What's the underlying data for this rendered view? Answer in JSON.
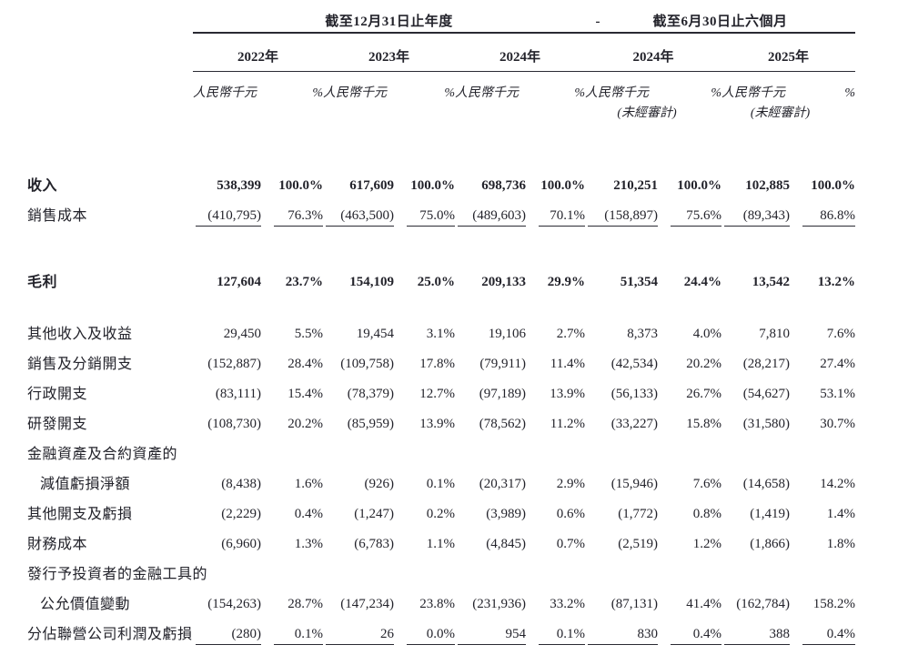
{
  "table": {
    "sections": [
      {
        "title": "截至12月31日止年度"
      },
      {
        "title": "截至6月30日止六個月"
      }
    ],
    "separator": "-",
    "unit_label": "人民幣千元",
    "pct_label": "%",
    "unaudited_label": "(未經審計)",
    "years": [
      {
        "label": "2022年",
        "unaudited": false
      },
      {
        "label": "2023年",
        "unaudited": false
      },
      {
        "label": "2024年",
        "unaudited": false
      },
      {
        "label": "2024年",
        "unaudited": true
      },
      {
        "label": "2025年",
        "unaudited": true
      }
    ],
    "rows": [
      {
        "label": "收入",
        "bold": true,
        "values": [
          "538,399",
          "100.0%",
          "617,609",
          "100.0%",
          "698,736",
          "100.0%",
          "210,251",
          "100.0%",
          "102,885",
          "100.0%"
        ]
      },
      {
        "label": "銷售成本",
        "underline": true,
        "values": [
          "(410,795)",
          "76.3%",
          "(463,500)",
          "75.0%",
          "(489,603)",
          "70.1%",
          "(158,897)",
          "75.6%",
          "(89,343)",
          "86.8%"
        ]
      },
      {
        "spacer": 40
      },
      {
        "label": "毛利",
        "bold": true,
        "values": [
          "127,604",
          "23.7%",
          "154,109",
          "25.0%",
          "209,133",
          "29.9%",
          "51,354",
          "24.4%",
          "13,542",
          "13.2%"
        ]
      },
      {
        "spacer": 24
      },
      {
        "label": "其他收入及收益",
        "values": [
          "29,450",
          "5.5%",
          "19,454",
          "3.1%",
          "19,106",
          "2.7%",
          "8,373",
          "4.0%",
          "7,810",
          "7.6%"
        ]
      },
      {
        "label": "銷售及分銷開支",
        "values": [
          "(152,887)",
          "28.4%",
          "(109,758)",
          "17.8%",
          "(79,911)",
          "11.4%",
          "(42,534)",
          "20.2%",
          "(28,217)",
          "27.4%"
        ]
      },
      {
        "label": "行政開支",
        "values": [
          "(83,111)",
          "15.4%",
          "(78,379)",
          "12.7%",
          "(97,189)",
          "13.9%",
          "(56,133)",
          "26.7%",
          "(54,627)",
          "53.1%"
        ]
      },
      {
        "label": "研發開支",
        "values": [
          "(108,730)",
          "20.2%",
          "(85,959)",
          "13.9%",
          "(78,562)",
          "11.2%",
          "(33,227)",
          "15.8%",
          "(31,580)",
          "30.7%"
        ]
      },
      {
        "label": "金融資產及合約資產的",
        "values": [
          "",
          "",
          "",
          "",
          "",
          "",
          "",
          "",
          "",
          ""
        ]
      },
      {
        "label": "減值虧損淨額",
        "indent": true,
        "values": [
          "(8,438)",
          "1.6%",
          "(926)",
          "0.1%",
          "(20,317)",
          "2.9%",
          "(15,946)",
          "7.6%",
          "(14,658)",
          "14.2%"
        ]
      },
      {
        "label": "其他開支及虧損",
        "values": [
          "(2,229)",
          "0.4%",
          "(1,247)",
          "0.2%",
          "(3,989)",
          "0.6%",
          "(1,772)",
          "0.8%",
          "(1,419)",
          "1.4%"
        ]
      },
      {
        "label": "財務成本",
        "values": [
          "(6,960)",
          "1.3%",
          "(6,783)",
          "1.1%",
          "(4,845)",
          "0.7%",
          "(2,519)",
          "1.2%",
          "(1,866)",
          "1.8%"
        ]
      },
      {
        "label": "發行予投資者的金融工具的",
        "values": [
          "",
          "",
          "",
          "",
          "",
          "",
          "",
          "",
          "",
          ""
        ]
      },
      {
        "label": "公允價值變動",
        "indent": true,
        "values": [
          "(154,263)",
          "28.7%",
          "(147,234)",
          "23.8%",
          "(231,936)",
          "33.2%",
          "(87,131)",
          "41.4%",
          "(162,784)",
          "158.2%"
        ]
      },
      {
        "label": "分佔聯營公司利潤及虧損",
        "underline": true,
        "values": [
          "(280)",
          "0.1%",
          "26",
          "0.0%",
          "954",
          "0.1%",
          "830",
          "0.4%",
          "388",
          "0.4%"
        ]
      }
    ]
  }
}
